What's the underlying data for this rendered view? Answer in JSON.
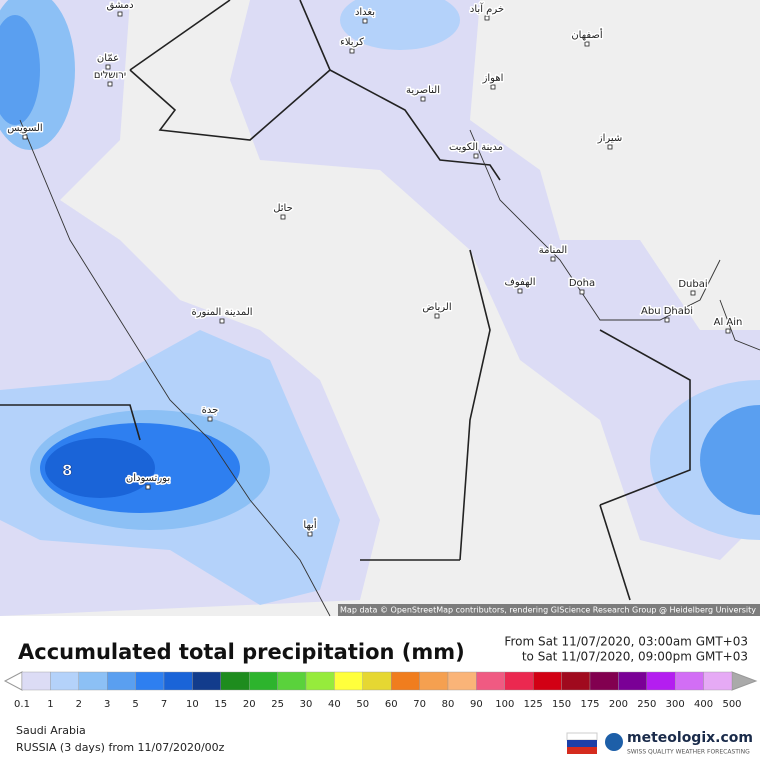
{
  "map": {
    "labels": [
      "دمشق",
      "بغداد",
      "خرم آباد",
      "عمّان",
      "ירושלים",
      "كربلاء",
      "أصفهان",
      "السويس",
      "الناصرية",
      "اهواز",
      "مدينة الكويت",
      "شيراز",
      "حائل",
      "المنامة",
      "الهفوف",
      "Doha",
      "Dubai",
      "Abu Dhabi",
      "Al Ain",
      "الرياض",
      "المدينة المنورة",
      "جدة",
      "بورتسودان",
      "أبها"
    ],
    "max_label": "8",
    "attribution": "Map data © OpenStreetMap contributors, rendering GIScience Research Group @ Heidelberg University"
  },
  "legend": {
    "title": "Accumulated total precipitation (mm)",
    "from": "From Sat 11/07/2020, 03:00am GMT+03",
    "to": "to Sat 11/07/2020, 09:00pm GMT+03",
    "ticks": [
      0.1,
      1,
      2,
      3,
      5,
      7,
      10,
      15,
      20,
      25,
      30,
      40,
      50,
      60,
      70,
      80,
      90,
      100,
      125,
      150,
      175,
      200,
      250,
      300,
      400,
      500
    ],
    "colors": [
      "#dcdcf5",
      "#b4d2fa",
      "#8cc0f5",
      "#5a9ff0",
      "#2e7ff0",
      "#1a64d8",
      "#123c8c",
      "#1e8c1e",
      "#2db42d",
      "#5ad23c",
      "#96eb3c",
      "#ffff3c",
      "#e6d732",
      "#f07d1e",
      "#f5a050",
      "#fab478",
      "#f05a82",
      "#eb2850",
      "#d20014",
      "#a00a1e",
      "#820050",
      "#7a0096",
      "#b41ef0",
      "#d26ef5",
      "#e6aaf5"
    ]
  },
  "footer": {
    "region": "Saudi Arabia",
    "model": "RUSSIA (3 days) from 11/07/2020/00z",
    "brand": "meteologix.com",
    "tagline": "SWISS QUALITY WEATHER FORECASTING"
  }
}
